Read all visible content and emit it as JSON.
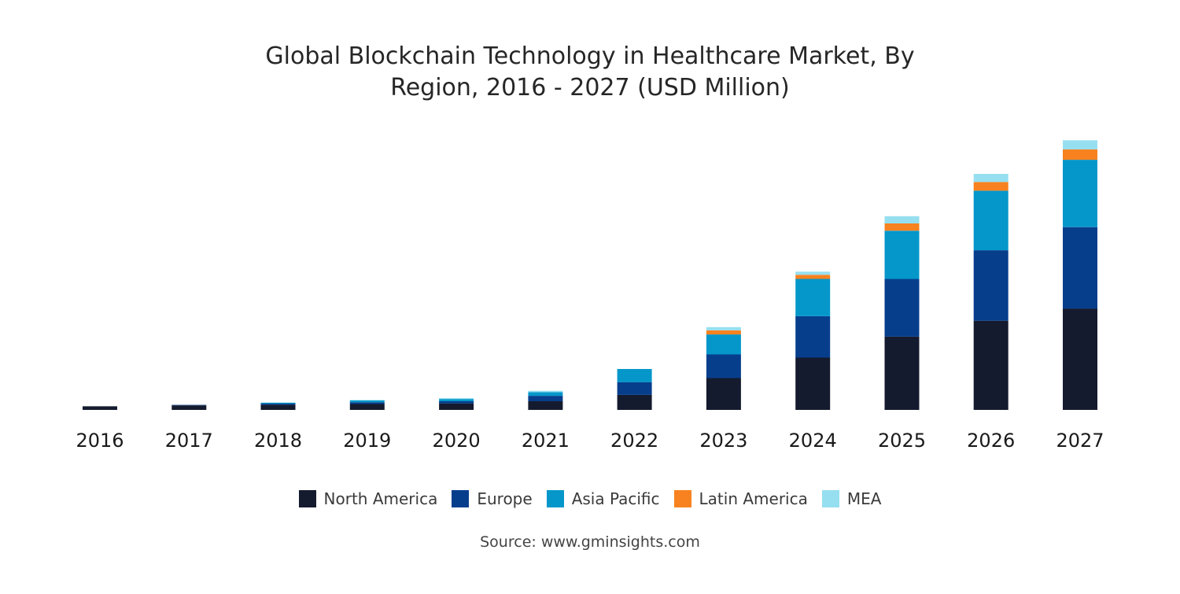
{
  "chart_data": {
    "type": "bar",
    "stacked": true,
    "title_lines": [
      "Global Blockchain Technology in Healthcare Market, By",
      "Region, 2016 - 2027 (USD Million)"
    ],
    "xlabel": "",
    "ylabel": "",
    "ylim": [
      0,
      5900
    ],
    "grid": false,
    "legend_position": "bottom",
    "categories": [
      "2016",
      "2017",
      "2018",
      "2019",
      "2020",
      "2021",
      "2022",
      "2023",
      "2024",
      "2025",
      "2026",
      "2027"
    ],
    "series": [
      {
        "name": "North America",
        "color": "#151b2e",
        "values": [
          80,
          100,
          110,
          130,
          140,
          190,
          330,
          700,
          1150,
          1610,
          1960,
          2230
        ]
      },
      {
        "name": "Europe",
        "color": "#073e8c",
        "values": [
          0,
          10,
          30,
          40,
          50,
          120,
          280,
          520,
          910,
          1270,
          1550,
          1790
        ]
      },
      {
        "name": "Asia Pacific",
        "color": "#0597ca",
        "values": [
          0,
          0,
          20,
          40,
          50,
          80,
          290,
          440,
          820,
          1060,
          1310,
          1480
        ]
      },
      {
        "name": "Latin America",
        "color": "#f7821f",
        "values": [
          0,
          0,
          0,
          0,
          0,
          0,
          0,
          90,
          90,
          160,
          190,
          230
        ]
      },
      {
        "name": "MEA",
        "color": "#96dff0",
        "values": [
          0,
          0,
          0,
          10,
          20,
          30,
          0,
          70,
          70,
          160,
          180,
          200
        ]
      }
    ]
  },
  "source": "Source: www.gminsights.com"
}
